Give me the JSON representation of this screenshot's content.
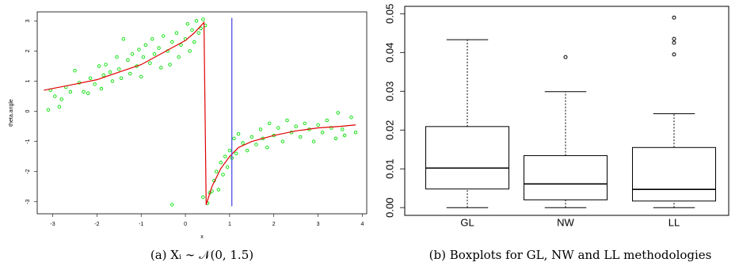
{
  "chart_data": [
    {
      "type": "scatter",
      "xlabel": "x",
      "ylabel": "theta.angle",
      "caption": "(a) Xᵢ ∼ 𝒩(0, 1.5)",
      "xlim": [
        -3.35,
        4.1
      ],
      "ylim": [
        -3.4,
        3.3
      ],
      "xticks": [
        -3,
        -2,
        -1,
        0,
        1,
        2,
        3,
        4
      ],
      "yticks": [
        -3,
        -2,
        -1,
        0,
        1,
        2,
        3
      ],
      "color": "#00e000",
      "x": [
        -3.1,
        -3.05,
        -2.95,
        -2.85,
        -2.8,
        -2.7,
        -2.6,
        -2.5,
        -2.4,
        -2.3,
        -2.2,
        -2.15,
        -2.05,
        -1.95,
        -1.9,
        -1.85,
        -1.8,
        -1.7,
        -1.65,
        -1.55,
        -1.5,
        -1.45,
        -1.4,
        -1.3,
        -1.25,
        -1.2,
        -1.1,
        -1.05,
        -1.0,
        -0.95,
        -0.9,
        -0.8,
        -0.75,
        -0.7,
        -0.6,
        -0.55,
        -0.5,
        -0.4,
        -0.35,
        -0.3,
        -0.2,
        -0.15,
        -0.1,
        0.0,
        0.05,
        0.1,
        0.15,
        0.2,
        0.25,
        0.3,
        0.35,
        0.4,
        0.45,
        0.6,
        -0.3,
        0.4,
        0.5,
        0.55,
        0.65,
        0.7,
        0.75,
        0.8,
        0.85,
        0.9,
        0.95,
        1.0,
        1.05,
        1.1,
        1.15,
        1.2,
        1.3,
        1.4,
        1.5,
        1.6,
        1.7,
        1.75,
        1.85,
        1.9,
        2.0,
        2.1,
        2.2,
        2.3,
        2.4,
        2.5,
        2.6,
        2.7,
        2.8,
        2.9,
        3.0,
        3.1,
        3.2,
        3.3,
        3.4,
        3.45,
        3.55,
        3.6,
        3.75,
        3.85
      ],
      "y": [
        0.05,
        0.7,
        0.5,
        0.15,
        0.4,
        0.8,
        0.65,
        1.35,
        0.95,
        0.65,
        0.6,
        1.1,
        0.9,
        1.5,
        0.75,
        1.2,
        1.55,
        1.3,
        1.0,
        1.8,
        1.4,
        1.1,
        2.4,
        1.7,
        1.25,
        1.9,
        1.5,
        2.05,
        1.15,
        1.8,
        2.2,
        1.6,
        2.4,
        1.9,
        2.1,
        1.45,
        2.5,
        2.0,
        1.55,
        2.3,
        2.6,
        1.8,
        2.2,
        2.4,
        2.9,
        2.0,
        2.7,
        2.3,
        3.0,
        2.6,
        2.75,
        3.05,
        2.85,
        -2.65,
        -3.1,
        -2.85,
        -3.05,
        -2.7,
        -2.3,
        -2.0,
        -2.6,
        -1.7,
        -2.1,
        -1.5,
        -1.85,
        -1.3,
        -1.55,
        -0.9,
        -1.4,
        -0.75,
        -1.05,
        -1.3,
        -0.85,
        -1.1,
        -0.6,
        -0.9,
        -1.2,
        -0.4,
        -0.8,
        -0.55,
        -1.0,
        -0.3,
        -0.7,
        -0.5,
        -0.85,
        -0.4,
        -0.6,
        -1.0,
        -0.45,
        -0.7,
        -0.3,
        -0.55,
        -0.9,
        -0.05,
        -0.6,
        -0.8,
        -0.2,
        -0.7
      ],
      "line": {
        "color": "#e00000",
        "x": [
          -3.2,
          -2.5,
          -2,
          -1.5,
          -1,
          -0.5,
          0,
          0.2,
          0.42,
          0.47,
          0.6,
          0.8,
          1.0,
          1.2,
          1.5,
          2,
          2.5,
          3,
          3.5,
          3.85
        ],
        "y": [
          0.7,
          0.9,
          1.05,
          1.3,
          1.55,
          1.95,
          2.35,
          2.6,
          2.95,
          -3.1,
          -2.5,
          -1.9,
          -1.5,
          -1.2,
          -1.0,
          -0.8,
          -0.65,
          -0.55,
          -0.5,
          -0.45
        ]
      },
      "vline": {
        "x": 1.05,
        "ymin": -3.15,
        "ymax": 3.1,
        "color": "#5050e0"
      }
    },
    {
      "type": "box",
      "caption": "(b) Boxplots for GL, NW and LL methodologies",
      "ylim": [
        -0.002,
        0.0519
      ],
      "yticks": [
        {
          "value": 0,
          "label": "0.00"
        },
        0.01,
        0.02,
        0.03,
        0.04,
        0.05
      ],
      "categories": [
        "GL",
        "NW",
        "LL"
      ],
      "boxes": [
        {
          "min": 0,
          "q1": 0.0048,
          "median": 0.0102,
          "q3": 0.0209,
          "max": 0.0433,
          "outliers": []
        },
        {
          "min": 0,
          "q1": 0.002,
          "median": 0.0061,
          "q3": 0.0134,
          "max": 0.0299,
          "outliers": [
            0.0388
          ]
        },
        {
          "min": 0,
          "q1": 0.0017,
          "median": 0.0047,
          "q3": 0.0155,
          "max": 0.0242,
          "outliers": [
            0.049,
            0.0435,
            0.0425,
            0.0395
          ]
        }
      ]
    }
  ]
}
